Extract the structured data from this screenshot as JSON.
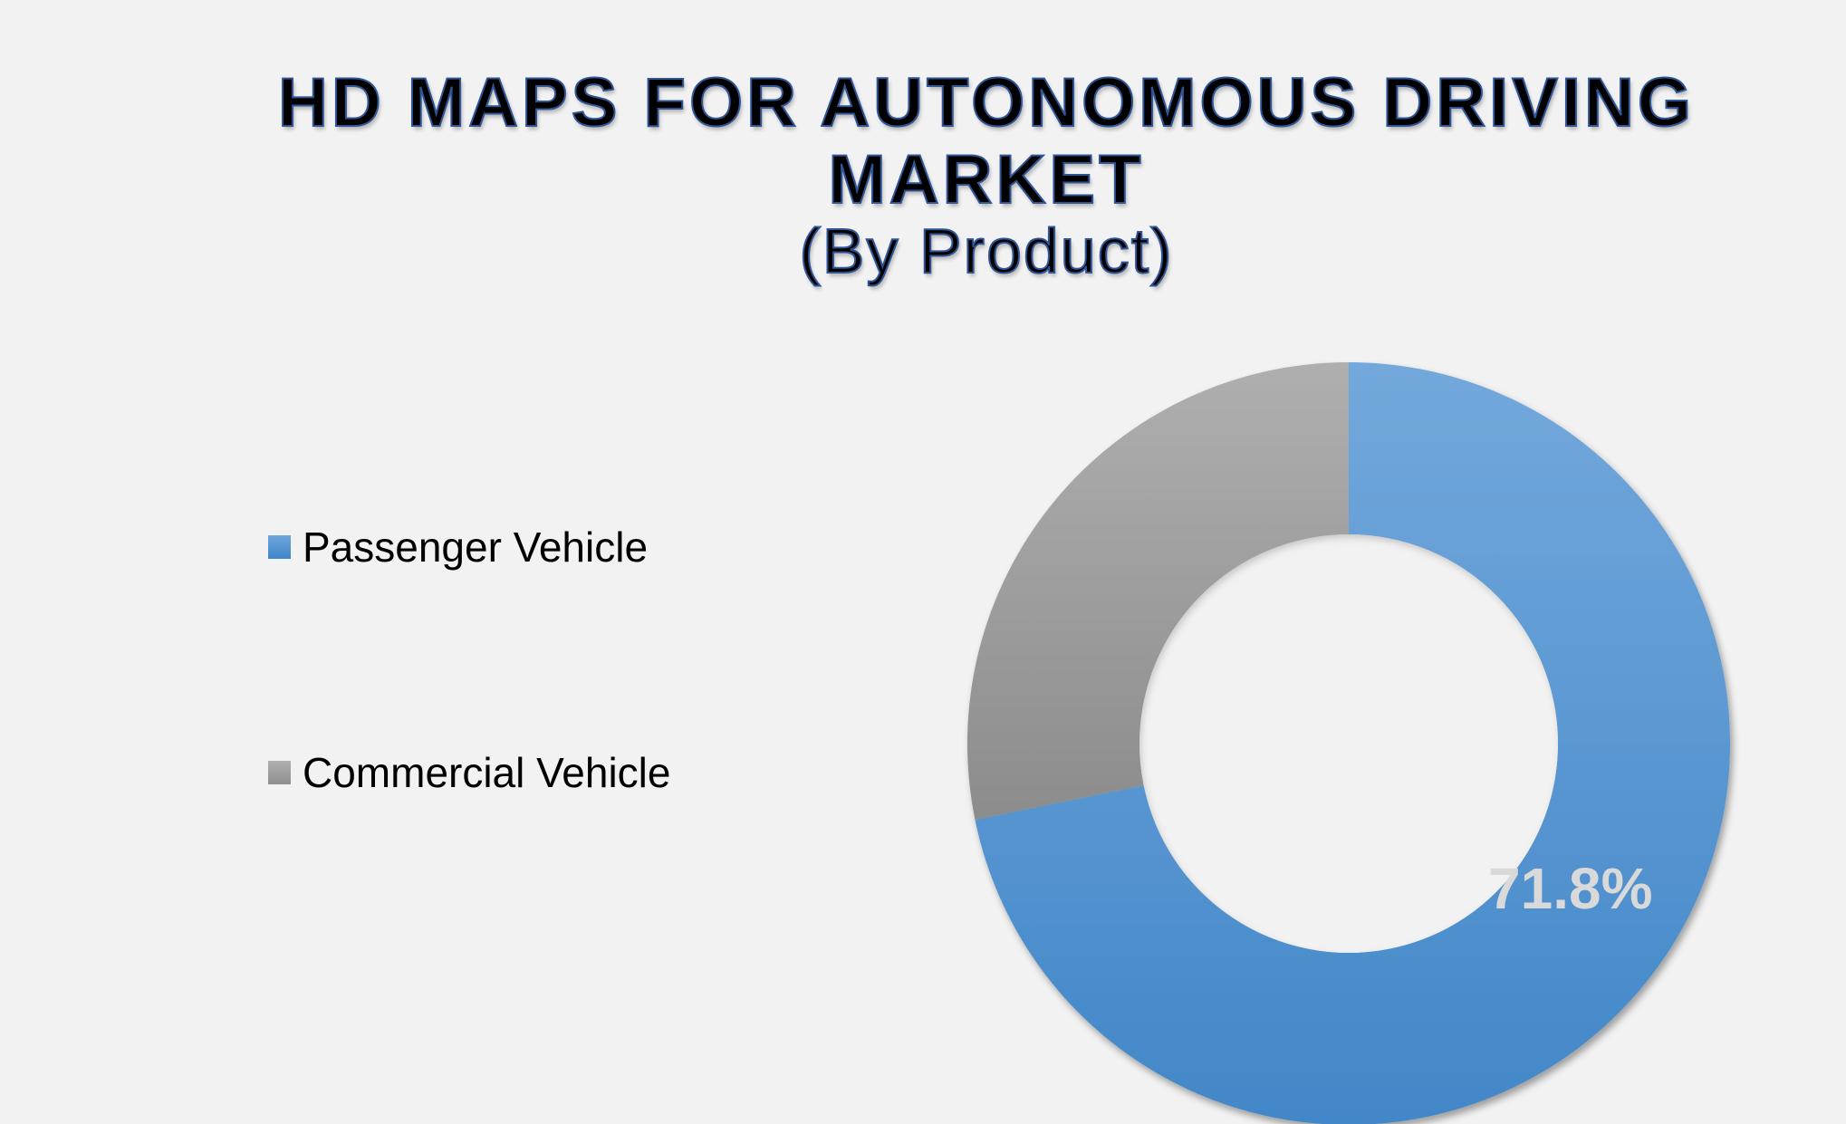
{
  "title": {
    "line1": "HD MAPS FOR AUTONOMOUS DRIVING",
    "line2": "MARKET",
    "line3": "(By Product)"
  },
  "legend": [
    {
      "label": "Passenger Vehicle",
      "color": "#5b9bd5"
    },
    {
      "label": "Commercial Vehicle",
      "color": "#a5a5a5"
    }
  ],
  "data_label": "71.8%",
  "chart_data": {
    "type": "pie",
    "subtype": "donut",
    "title": "HD MAPS FOR AUTONOMOUS DRIVING MARKET (By Product)",
    "categories": [
      "Passenger Vehicle",
      "Commercial Vehicle"
    ],
    "values": [
      71.8,
      28.2
    ],
    "unit": "%",
    "data_labels": [
      "71.8%",
      ""
    ],
    "colors": [
      "#5b9bd5",
      "#a5a5a5"
    ],
    "legend_position": "left",
    "start_angle_deg": 0
  }
}
